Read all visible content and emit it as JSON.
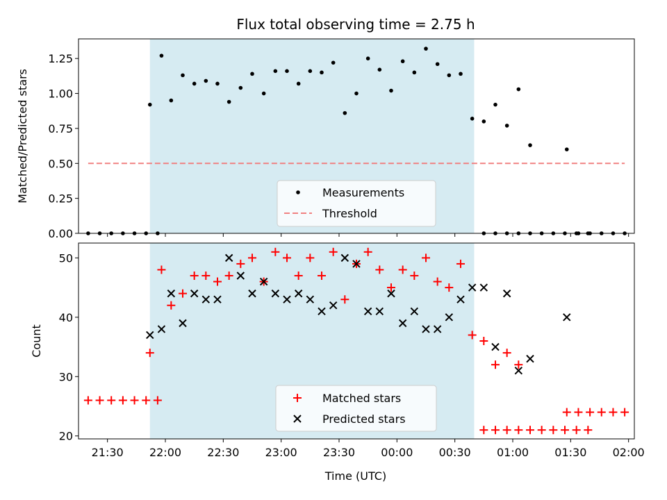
{
  "chart_data": [
    {
      "type": "scatter",
      "title": "Flux total observing time = 2.75 h",
      "xlabel": "",
      "ylabel": "Matched/Predicted stars",
      "xlim": [
        "21:15",
        "02:03"
      ],
      "ylim": [
        0,
        1.39
      ],
      "yticks": [
        "0.00",
        "0.25",
        "0.50",
        "0.75",
        "1.00",
        "1.25"
      ],
      "shaded_interval": [
        "21:52",
        "00:40"
      ],
      "legend_position": "lower center",
      "series": [
        {
          "name": "Measurements",
          "marker": "dot",
          "color": "#000000",
          "points": [
            [
              "21:20",
              0
            ],
            [
              "21:26",
              0
            ],
            [
              "21:32",
              0
            ],
            [
              "21:38",
              0
            ],
            [
              "21:44",
              0
            ],
            [
              "21:50",
              0
            ],
            [
              "21:56",
              0
            ],
            [
              "21:52",
              0.92
            ],
            [
              "21:58",
              1.27
            ],
            [
              "22:03",
              0.95
            ],
            [
              "22:09",
              1.13
            ],
            [
              "22:15",
              1.07
            ],
            [
              "22:21",
              1.09
            ],
            [
              "22:27",
              1.07
            ],
            [
              "22:33",
              0.94
            ],
            [
              "22:39",
              1.04
            ],
            [
              "22:45",
              1.14
            ],
            [
              "22:51",
              1.0
            ],
            [
              "22:57",
              1.16
            ],
            [
              "23:03",
              1.16
            ],
            [
              "23:09",
              1.07
            ],
            [
              "23:15",
              1.16
            ],
            [
              "23:21",
              1.15
            ],
            [
              "23:27",
              1.22
            ],
            [
              "23:33",
              0.86
            ],
            [
              "23:39",
              1.0
            ],
            [
              "23:45",
              1.25
            ],
            [
              "23:51",
              1.17
            ],
            [
              "23:57",
              1.02
            ],
            [
              "00:03",
              1.23
            ],
            [
              "00:09",
              1.15
            ],
            [
              "00:15",
              1.32
            ],
            [
              "00:21",
              1.21
            ],
            [
              "00:27",
              1.13
            ],
            [
              "00:33",
              1.14
            ],
            [
              "00:39",
              0.82
            ],
            [
              "00:45",
              0.8
            ],
            [
              "00:51",
              0.92
            ],
            [
              "00:57",
              0.77
            ],
            [
              "01:03",
              1.03
            ],
            [
              "01:09",
              0.63
            ],
            [
              "00:45",
              0
            ],
            [
              "00:51",
              0
            ],
            [
              "00:57",
              0
            ],
            [
              "01:03",
              0
            ],
            [
              "01:09",
              0
            ],
            [
              "01:15",
              0
            ],
            [
              "01:21",
              0
            ],
            [
              "01:27",
              0
            ],
            [
              "01:33",
              0
            ],
            [
              "01:39",
              0
            ],
            [
              "01:28",
              0.6
            ],
            [
              "01:34",
              0
            ],
            [
              "01:40",
              0
            ],
            [
              "01:46",
              0
            ],
            [
              "01:52",
              0
            ],
            [
              "01:58",
              0
            ]
          ]
        },
        {
          "name": "Threshold",
          "marker": "dashed-line",
          "color": "#f08080",
          "x": [
            "21:20",
            "01:58"
          ],
          "y": [
            0.5,
            0.5
          ]
        }
      ]
    },
    {
      "type": "scatter",
      "title": "",
      "xlabel": "Time (UTC)",
      "ylabel": "Count",
      "xlim": [
        "21:15",
        "02:03"
      ],
      "ylim": [
        19.5,
        52.5
      ],
      "yticks": [
        "20",
        "30",
        "40",
        "50"
      ],
      "xticks": [
        "21:30",
        "22:00",
        "22:30",
        "23:00",
        "23:30",
        "00:00",
        "00:30",
        "01:00",
        "01:30",
        "02:00"
      ],
      "shaded_interval": [
        "21:52",
        "00:40"
      ],
      "legend_position": "lower center",
      "series": [
        {
          "name": "Matched stars",
          "marker": "plus",
          "color": "#ff0000",
          "points": [
            [
              "21:20",
              26
            ],
            [
              "21:26",
              26
            ],
            [
              "21:32",
              26
            ],
            [
              "21:38",
              26
            ],
            [
              "21:44",
              26
            ],
            [
              "21:50",
              26
            ],
            [
              "21:56",
              26
            ],
            [
              "21:52",
              34
            ],
            [
              "21:58",
              48
            ],
            [
              "22:03",
              42
            ],
            [
              "22:09",
              44
            ],
            [
              "22:15",
              47
            ],
            [
              "22:21",
              47
            ],
            [
              "22:27",
              46
            ],
            [
              "22:33",
              47
            ],
            [
              "22:39",
              49
            ],
            [
              "22:45",
              50
            ],
            [
              "22:51",
              46
            ],
            [
              "22:57",
              51
            ],
            [
              "23:03",
              50
            ],
            [
              "23:09",
              47
            ],
            [
              "23:15",
              50
            ],
            [
              "23:21",
              47
            ],
            [
              "23:27",
              51
            ],
            [
              "23:33",
              43
            ],
            [
              "23:39",
              49
            ],
            [
              "23:45",
              51
            ],
            [
              "23:51",
              48
            ],
            [
              "23:57",
              45
            ],
            [
              "00:03",
              48
            ],
            [
              "00:09",
              47
            ],
            [
              "00:15",
              50
            ],
            [
              "00:21",
              46
            ],
            [
              "00:27",
              45
            ],
            [
              "00:33",
              49
            ],
            [
              "00:39",
              37
            ],
            [
              "00:45",
              36
            ],
            [
              "00:51",
              32
            ],
            [
              "00:57",
              34
            ],
            [
              "01:03",
              32
            ],
            [
              "00:45",
              21
            ],
            [
              "00:51",
              21
            ],
            [
              "00:57",
              21
            ],
            [
              "01:03",
              21
            ],
            [
              "01:09",
              21
            ],
            [
              "01:15",
              21
            ],
            [
              "01:21",
              21
            ],
            [
              "01:27",
              21
            ],
            [
              "01:33",
              21
            ],
            [
              "01:39",
              21
            ],
            [
              "01:28",
              24
            ],
            [
              "01:34",
              24
            ],
            [
              "01:40",
              24
            ],
            [
              "01:46",
              24
            ],
            [
              "01:52",
              24
            ],
            [
              "01:58",
              24
            ]
          ]
        },
        {
          "name": "Predicted stars",
          "marker": "x",
          "color": "#000000",
          "points": [
            [
              "21:52",
              37
            ],
            [
              "21:58",
              38
            ],
            [
              "22:03",
              44
            ],
            [
              "22:09",
              39
            ],
            [
              "22:15",
              44
            ],
            [
              "22:21",
              43
            ],
            [
              "22:27",
              43
            ],
            [
              "22:33",
              50
            ],
            [
              "22:39",
              47
            ],
            [
              "22:45",
              44
            ],
            [
              "22:51",
              46
            ],
            [
              "22:57",
              44
            ],
            [
              "23:03",
              43
            ],
            [
              "23:09",
              44
            ],
            [
              "23:15",
              43
            ],
            [
              "23:21",
              41
            ],
            [
              "23:27",
              42
            ],
            [
              "23:33",
              50
            ],
            [
              "23:39",
              49
            ],
            [
              "23:45",
              41
            ],
            [
              "23:51",
              41
            ],
            [
              "23:57",
              44
            ],
            [
              "00:03",
              39
            ],
            [
              "00:09",
              41
            ],
            [
              "00:15",
              38
            ],
            [
              "00:21",
              38
            ],
            [
              "00:27",
              40
            ],
            [
              "00:33",
              43
            ],
            [
              "00:39",
              45
            ],
            [
              "00:45",
              45
            ],
            [
              "00:51",
              35
            ],
            [
              "00:57",
              44
            ],
            [
              "01:03",
              31
            ],
            [
              "01:09",
              33
            ],
            [
              "01:28",
              40
            ]
          ]
        }
      ]
    }
  ]
}
